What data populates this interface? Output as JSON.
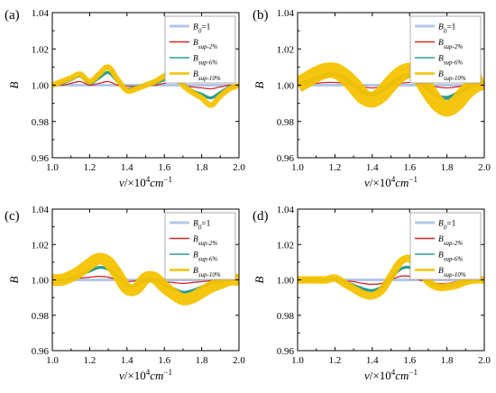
{
  "chart_data": [
    {
      "type": "line",
      "panel_label": "(a)",
      "xlabel_parts": {
        "var": "v",
        "sep": "/×10",
        "exp1": "4",
        "unit": "cm",
        "exp2": "−1"
      },
      "ylabel": "B",
      "xlim": [
        1.0,
        2.0
      ],
      "ylim": [
        0.96,
        1.04
      ],
      "xticks": [
        "1.0",
        "1.2",
        "1.4",
        "1.6",
        "1.8",
        "2.0"
      ],
      "yticks": [
        "0.96",
        "0.98",
        "1.00",
        "1.02",
        "1.04"
      ],
      "legend": {
        "position": "top-right"
      },
      "series": [
        {
          "name": "B0=1",
          "legend_main": "B",
          "legend_sub": "0",
          "legend_tail": "=1",
          "color": "#b4c7e7",
          "x": [
            1.0,
            2.0
          ],
          "y": [
            1.0,
            1.0
          ],
          "band": 0
        },
        {
          "name": "Bsup-2%",
          "legend_main": "B",
          "legend_sub": "sup-2%",
          "legend_tail": "",
          "color": "#d62728",
          "x": [
            1.0,
            1.05,
            1.1,
            1.15,
            1.2,
            1.25,
            1.3,
            1.35,
            1.4,
            1.45,
            1.5,
            1.55,
            1.6,
            1.65,
            1.7,
            1.75,
            1.8,
            1.85,
            1.9,
            1.95,
            2.0
          ],
          "y": [
            1.0,
            1.0,
            1.001,
            1.002,
            1.0,
            1.001,
            1.002,
            1.0,
            0.9995,
            0.9995,
            1.0,
            1.0,
            1.001,
            1.002,
            1.0,
            0.999,
            0.9985,
            0.998,
            0.999,
            1.0,
            1.0
          ],
          "band": 0
        },
        {
          "name": "Bsup-6%",
          "legend_main": "B",
          "legend_sub": "sup-6%",
          "legend_tail": "",
          "color": "#2a9d8f",
          "x": [
            1.0,
            1.05,
            1.1,
            1.15,
            1.2,
            1.25,
            1.3,
            1.35,
            1.4,
            1.45,
            1.5,
            1.55,
            1.6,
            1.65,
            1.7,
            1.75,
            1.8,
            1.85,
            1.9,
            1.95,
            2.0
          ],
          "y": [
            1.0,
            1.001,
            1.003,
            1.005,
            1.001,
            1.004,
            1.007,
            1.002,
            0.998,
            0.999,
            1.0,
            1.001,
            1.003,
            1.005,
            1.001,
            0.997,
            0.995,
            0.993,
            0.996,
            0.999,
            1.0
          ],
          "band": 0.0005
        },
        {
          "name": "Bsup-10%",
          "legend_main": "B",
          "legend_sub": "sup-10%",
          "legend_tail": "",
          "color": "#f5c200",
          "x": [
            1.0,
            1.05,
            1.1,
            1.15,
            1.2,
            1.25,
            1.3,
            1.35,
            1.4,
            1.45,
            1.5,
            1.55,
            1.6,
            1.65,
            1.7,
            1.75,
            1.8,
            1.85,
            1.9,
            1.95,
            2.0
          ],
          "y": [
            1.0,
            1.002,
            1.004,
            1.006,
            1.002,
            1.006,
            1.01,
            1.003,
            0.997,
            0.998,
            1.0,
            1.002,
            1.005,
            1.007,
            1.0,
            0.996,
            0.993,
            0.989,
            0.994,
            0.998,
            1.0
          ],
          "band": 0.0012
        }
      ]
    },
    {
      "type": "line",
      "panel_label": "(b)",
      "xlabel_parts": {
        "var": "v",
        "sep": "/×10",
        "exp1": "4",
        "unit": "cm",
        "exp2": "−1"
      },
      "ylabel": "B",
      "xlim": [
        1.0,
        2.0
      ],
      "ylim": [
        0.96,
        1.04
      ],
      "xticks": [
        "1.0",
        "1.2",
        "1.4",
        "1.6",
        "1.8",
        "2.0"
      ],
      "yticks": [
        "0.96",
        "0.98",
        "1.00",
        "1.02",
        "1.04"
      ],
      "legend": {
        "position": "top-right"
      },
      "series": [
        {
          "name": "B0=1",
          "legend_main": "B",
          "legend_sub": "0",
          "legend_tail": "=1",
          "color": "#b4c7e7",
          "x": [
            1.0,
            2.0
          ],
          "y": [
            1.0,
            1.0
          ],
          "band": 0
        },
        {
          "name": "Bsup-2%",
          "legend_main": "B",
          "legend_sub": "sup-2%",
          "legend_tail": "",
          "color": "#d62728",
          "x": [
            1.0,
            1.05,
            1.1,
            1.15,
            1.2,
            1.25,
            1.3,
            1.35,
            1.4,
            1.45,
            1.5,
            1.55,
            1.6,
            1.65,
            1.7,
            1.75,
            1.8,
            1.85,
            1.9,
            1.95,
            2.0
          ],
          "y": [
            1.0,
            1.0005,
            1.001,
            1.0015,
            1.0015,
            1.001,
            1.0,
            0.999,
            0.9985,
            0.999,
            1.0,
            1.001,
            1.0015,
            1.001,
            1.0,
            0.999,
            0.9985,
            0.999,
            1.0,
            1.0005,
            1.0
          ],
          "band": 0
        },
        {
          "name": "Bsup-6%",
          "legend_main": "B",
          "legend_sub": "sup-6%",
          "legend_tail": "",
          "color": "#2a9d8f",
          "x": [
            1.0,
            1.05,
            1.1,
            1.15,
            1.2,
            1.25,
            1.3,
            1.35,
            1.4,
            1.45,
            1.5,
            1.55,
            1.6,
            1.65,
            1.7,
            1.75,
            1.8,
            1.85,
            1.9,
            1.95,
            2.0
          ],
          "y": [
            1.0,
            1.002,
            1.004,
            1.0055,
            1.006,
            1.004,
            1.0,
            0.996,
            0.995,
            0.997,
            1.001,
            1.004,
            1.005,
            1.003,
            0.998,
            0.994,
            0.993,
            0.995,
            0.998,
            1.0,
            1.001
          ],
          "band": 0.0008
        },
        {
          "name": "Bsup-10%",
          "legend_main": "B",
          "legend_sub": "sup-10%",
          "legend_tail": "",
          "color": "#f5c200",
          "x": [
            1.0,
            1.05,
            1.1,
            1.15,
            1.2,
            1.25,
            1.3,
            1.35,
            1.4,
            1.45,
            1.5,
            1.55,
            1.6,
            1.65,
            1.7,
            1.75,
            1.8,
            1.85,
            1.9,
            1.95,
            2.0
          ],
          "y": [
            1.0,
            1.003,
            1.006,
            1.008,
            1.008,
            1.005,
            1.0,
            0.994,
            0.992,
            0.995,
            1.001,
            1.006,
            1.008,
            1.005,
            0.997,
            0.99,
            0.987,
            0.99,
            0.996,
            1.0,
            1.002
          ],
          "band": 0.004
        }
      ]
    },
    {
      "type": "line",
      "panel_label": "(c)",
      "xlabel_parts": {
        "var": "v",
        "sep": "/×10",
        "exp1": "4",
        "unit": "cm",
        "exp2": "−1"
      },
      "ylabel": "B",
      "xlim": [
        1.0,
        2.0
      ],
      "ylim": [
        0.96,
        1.04
      ],
      "xticks": [
        "1.0",
        "1.2",
        "1.4",
        "1.6",
        "1.8",
        "2.0"
      ],
      "yticks": [
        "0.96",
        "0.98",
        "1.00",
        "1.02",
        "1.04"
      ],
      "legend": {
        "position": "top-right"
      },
      "series": [
        {
          "name": "B0=1",
          "legend_main": "B",
          "legend_sub": "0",
          "legend_tail": "=1",
          "color": "#b4c7e7",
          "x": [
            1.0,
            2.0
          ],
          "y": [
            1.0,
            1.0
          ],
          "band": 0
        },
        {
          "name": "Bsup-2%",
          "legend_main": "B",
          "legend_sub": "sup-2%",
          "legend_tail": "",
          "color": "#d62728",
          "x": [
            1.0,
            1.05,
            1.1,
            1.15,
            1.2,
            1.25,
            1.3,
            1.35,
            1.4,
            1.45,
            1.5,
            1.55,
            1.6,
            1.65,
            1.7,
            1.75,
            1.8,
            1.85,
            1.9,
            1.95,
            2.0
          ],
          "y": [
            1.0,
            1.0,
            1.0005,
            1.001,
            1.0015,
            1.002,
            1.0015,
            1.0,
            0.999,
            0.9995,
            1.0,
            1.0,
            0.999,
            0.9985,
            0.998,
            0.9985,
            0.999,
            0.9995,
            1.0,
            1.0,
            1.0
          ],
          "band": 0
        },
        {
          "name": "Bsup-6%",
          "legend_main": "B",
          "legend_sub": "sup-6%",
          "legend_tail": "",
          "color": "#2a9d8f",
          "x": [
            1.0,
            1.05,
            1.1,
            1.15,
            1.2,
            1.25,
            1.3,
            1.35,
            1.4,
            1.45,
            1.5,
            1.55,
            1.6,
            1.65,
            1.7,
            1.75,
            1.8,
            1.85,
            1.9,
            1.95,
            2.0
          ],
          "y": [
            1.0,
            1.0,
            1.001,
            1.003,
            1.005,
            1.007,
            1.006,
            1.002,
            0.997,
            0.997,
            1.0,
            1.0,
            0.997,
            0.995,
            0.993,
            0.994,
            0.996,
            0.998,
            0.999,
            1.0,
            1.0
          ],
          "band": 0.0005
        },
        {
          "name": "Bsup-10%",
          "legend_main": "B",
          "legend_sub": "sup-10%",
          "legend_tail": "",
          "color": "#f5c200",
          "x": [
            1.0,
            1.05,
            1.1,
            1.15,
            1.2,
            1.25,
            1.3,
            1.35,
            1.4,
            1.45,
            1.5,
            1.55,
            1.6,
            1.65,
            1.7,
            1.75,
            1.8,
            1.85,
            1.9,
            1.95,
            2.0
          ],
          "y": [
            1.0,
            1.0,
            1.002,
            1.005,
            1.009,
            1.012,
            1.01,
            1.003,
            0.995,
            0.995,
            1.001,
            1.001,
            0.996,
            0.992,
            0.989,
            0.99,
            0.993,
            0.996,
            0.998,
            1.0,
            1.0
          ],
          "band": 0.003
        }
      ]
    },
    {
      "type": "line",
      "panel_label": "(d)",
      "xlabel_parts": {
        "var": "v",
        "sep": "/×10",
        "exp1": "4",
        "unit": "cm",
        "exp2": "−1"
      },
      "ylabel": "B",
      "xlim": [
        1.0,
        2.0
      ],
      "ylim": [
        0.96,
        1.04
      ],
      "xticks": [
        "1.0",
        "1.2",
        "1.4",
        "1.6",
        "1.8",
        "2.0"
      ],
      "yticks": [
        "0.96",
        "0.98",
        "1.00",
        "1.02",
        "1.04"
      ],
      "legend": {
        "position": "top-right"
      },
      "series": [
        {
          "name": "B0=1",
          "legend_main": "B",
          "legend_sub": "0",
          "legend_tail": "=1",
          "color": "#b4c7e7",
          "x": [
            1.0,
            2.0
          ],
          "y": [
            1.0,
            1.0
          ],
          "band": 0
        },
        {
          "name": "Bsup-2%",
          "legend_main": "B",
          "legend_sub": "sup-2%",
          "legend_tail": "",
          "color": "#d62728",
          "x": [
            1.0,
            1.05,
            1.1,
            1.15,
            1.2,
            1.25,
            1.3,
            1.35,
            1.4,
            1.45,
            1.5,
            1.55,
            1.6,
            1.65,
            1.7,
            1.75,
            1.8,
            1.85,
            1.9,
            1.95,
            2.0
          ],
          "y": [
            1.0,
            1.0,
            1.0,
            1.0,
            1.0,
            0.9995,
            0.999,
            0.998,
            0.9975,
            0.998,
            1.0,
            1.002,
            1.002,
            1.0,
            0.999,
            0.998,
            0.998,
            0.999,
            0.9995,
            1.0,
            1.0
          ],
          "band": 0
        },
        {
          "name": "Bsup-6%",
          "legend_main": "B",
          "legend_sub": "sup-6%",
          "legend_tail": "",
          "color": "#2a9d8f",
          "x": [
            1.0,
            1.05,
            1.1,
            1.15,
            1.2,
            1.25,
            1.3,
            1.35,
            1.4,
            1.45,
            1.5,
            1.55,
            1.6,
            1.65,
            1.7,
            1.75,
            1.8,
            1.85,
            1.9,
            1.95,
            2.0
          ],
          "y": [
            1.0,
            1.0,
            1.0,
            1.0,
            1.0005,
            0.999,
            0.997,
            0.995,
            0.994,
            0.996,
            1.001,
            1.006,
            1.007,
            1.003,
            0.999,
            0.997,
            0.997,
            0.998,
            0.999,
            1.0,
            1.0
          ],
          "band": 0.0005
        },
        {
          "name": "Bsup-10%",
          "legend_main": "B",
          "legend_sub": "sup-10%",
          "legend_tail": "",
          "color": "#f5c200",
          "x": [
            1.0,
            1.05,
            1.1,
            1.15,
            1.2,
            1.25,
            1.3,
            1.35,
            1.4,
            1.45,
            1.5,
            1.55,
            1.6,
            1.65,
            1.7,
            1.75,
            1.8,
            1.85,
            1.9,
            1.95,
            2.0
          ],
          "y": [
            1.0,
            1.0,
            1.0,
            1.0,
            1.001,
            0.998,
            0.995,
            0.992,
            0.991,
            0.994,
            1.002,
            1.01,
            1.012,
            1.006,
            0.999,
            0.996,
            0.996,
            0.997,
            0.999,
            1.0,
            1.0
          ],
          "band": 0.0018
        }
      ]
    }
  ]
}
